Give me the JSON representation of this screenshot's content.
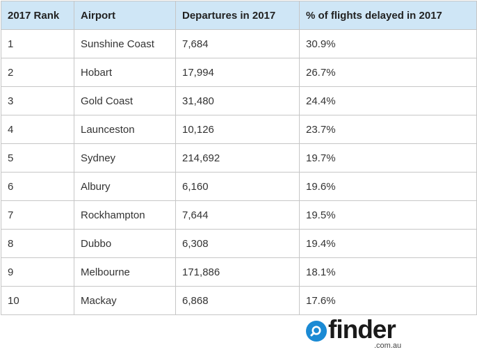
{
  "table": {
    "headers": [
      "2017 Rank",
      "Airport",
      "Departures in 2017",
      "% of flights delayed in 2017"
    ],
    "rows": [
      [
        "1",
        "Sunshine Coast",
        "7,684",
        "30.9%"
      ],
      [
        "2",
        "Hobart",
        "17,994",
        "26.7%"
      ],
      [
        "3",
        "Gold Coast",
        "31,480",
        "24.4%"
      ],
      [
        "4",
        "Launceston",
        "10,126",
        "23.7%"
      ],
      [
        "5",
        "Sydney",
        "214,692",
        "19.7%"
      ],
      [
        "6",
        "Albury",
        "6,160",
        "19.6%"
      ],
      [
        "7",
        "Rockhampton",
        "7,644",
        "19.5%"
      ],
      [
        "8",
        "Dubbo",
        "6,308",
        "19.4%"
      ],
      [
        "9",
        "Melbourne",
        "171,886",
        "18.1%"
      ],
      [
        "10",
        "Mackay",
        "6,868",
        "17.6%"
      ]
    ]
  },
  "logo": {
    "word": "finder",
    "domain": ".com.au",
    "icon": "search-icon",
    "color": "#1a8ad4"
  },
  "colors": {
    "header_bg": "#cfe6f6",
    "border": "#c6c6c6"
  }
}
